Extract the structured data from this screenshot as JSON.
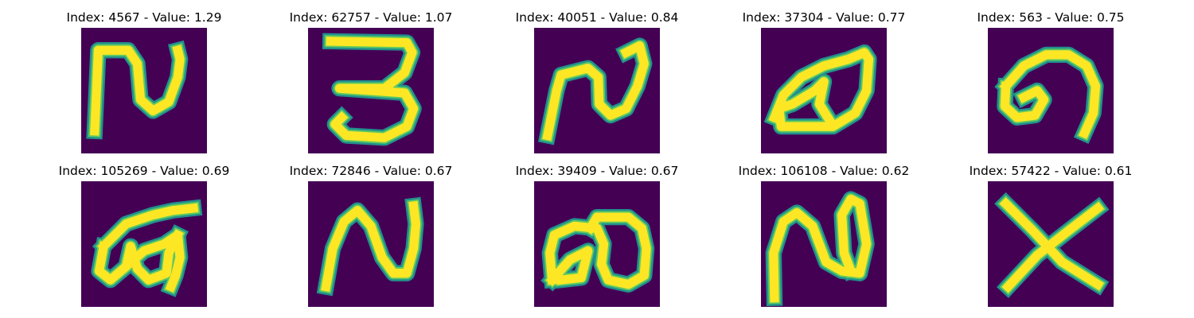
{
  "figure": {
    "background": "#ffffff",
    "colormap": "viridis",
    "panels": [
      {
        "index": 4567,
        "value": 1.29,
        "title": "Index: 4567 - Value: 1.29",
        "glyph": "rv-shape"
      },
      {
        "index": 62757,
        "value": 1.07,
        "title": "Index: 62757 - Value: 1.07",
        "glyph": "three-shape"
      },
      {
        "index": 40051,
        "value": 0.84,
        "title": "Index: 40051 - Value: 0.84",
        "glyph": "rv-slanted-shape"
      },
      {
        "index": 37304,
        "value": 0.77,
        "title": "Index: 37304 - Value: 0.77",
        "glyph": "eye-loop-shape"
      },
      {
        "index": 563,
        "value": 0.75,
        "title": "Index: 563 - Value: 0.75",
        "glyph": "hook-curl-shape"
      },
      {
        "index": 105269,
        "value": 0.69,
        "title": "Index: 105269 - Value: 0.69",
        "glyph": "loop-w-shape"
      },
      {
        "index": 72846,
        "value": 0.67,
        "title": "Index: 72846 - Value: 0.67",
        "glyph": "n-wave-shape"
      },
      {
        "index": 39409,
        "value": 0.67,
        "title": "Index: 39409 - Value: 0.67",
        "glyph": "double-loop-shape"
      },
      {
        "index": 106108,
        "value": 0.62,
        "title": "Index: 106108 - Value: 0.62",
        "glyph": "n-loop-shape"
      },
      {
        "index": 57422,
        "value": 0.61,
        "title": "Index: 57422 - Value: 0.61",
        "glyph": "x-shape"
      }
    ]
  },
  "colors": {
    "image_background": "#440154",
    "stroke_outer": "#21918c",
    "stroke_mid": "#5ec962",
    "stroke_core": "#fde725"
  }
}
